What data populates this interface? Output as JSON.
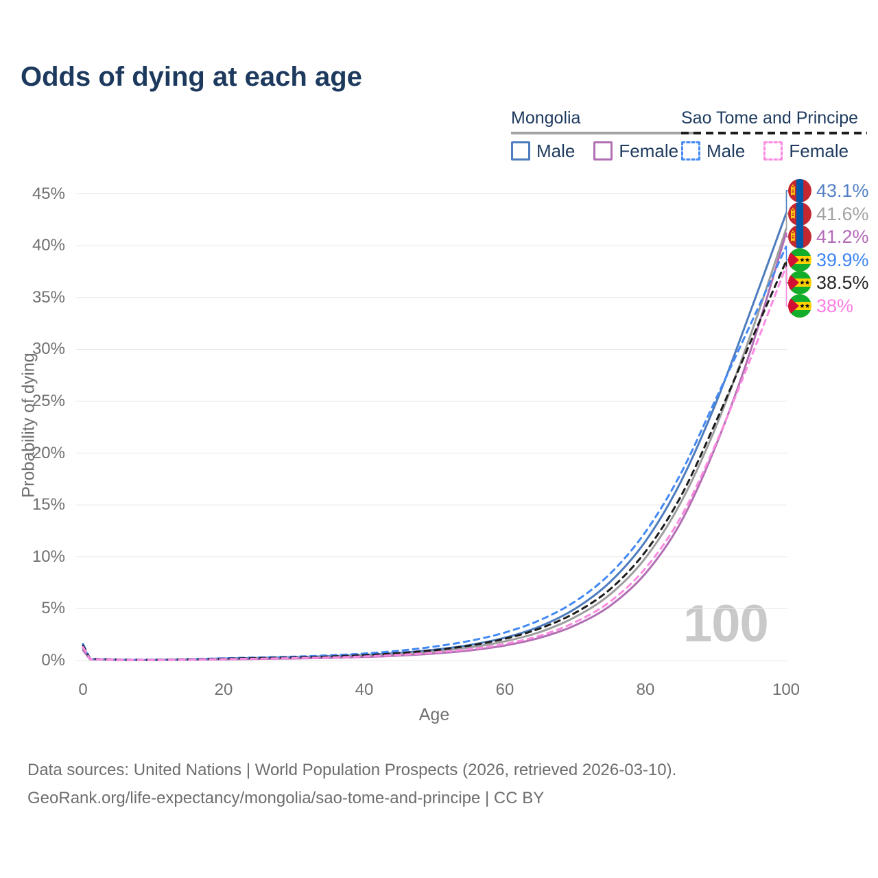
{
  "title": "Odds of dying at each age",
  "watermark": "100",
  "legend": {
    "groups": [
      {
        "name": "Mongolia",
        "line_style": "solid",
        "underline_color": "#a3a3a3",
        "items": [
          {
            "label": "Male",
            "color": "#4d7cbe"
          },
          {
            "label": "Female",
            "color": "#b16fb3"
          }
        ]
      },
      {
        "name": "Sao Tome and Principe",
        "line_style": "dashed",
        "underline_color": "#1c1c1c",
        "items": [
          {
            "label": "Male",
            "color": "#4489f4"
          },
          {
            "label": "Female",
            "color": "#f98ae0"
          }
        ]
      }
    ]
  },
  "axes": {
    "x_label": "Age",
    "y_label": "Probability of dying",
    "x_ticks": {
      "values": [
        0,
        20,
        40,
        60,
        80,
        100
      ],
      "labels": [
        "0",
        "20",
        "40",
        "60",
        "80",
        "100"
      ]
    },
    "y_ticks": {
      "values": [
        0,
        5,
        10,
        15,
        20,
        25,
        30,
        35,
        40,
        45
      ],
      "labels": [
        "0%",
        "5%",
        "10%",
        "15%",
        "20%",
        "25%",
        "30%",
        "35%",
        "40%",
        "45%"
      ]
    }
  },
  "end_labels": [
    {
      "value": "43.1%",
      "color": "#527fc4",
      "flag": "mongolia",
      "series_index": 0
    },
    {
      "value": "41.6%",
      "color": "#a2a2a2",
      "flag": "mongolia",
      "series_index": 1
    },
    {
      "value": "41.2%",
      "color": "#b36ab8",
      "flag": "mongolia",
      "series_index": 2
    },
    {
      "value": "39.9%",
      "color": "#3d85f5",
      "flag": "sao-tome",
      "series_index": 3
    },
    {
      "value": "38.5%",
      "color": "#262626",
      "flag": "sao-tome",
      "series_index": 4
    },
    {
      "value": "38%",
      "color": "#fb7ee5",
      "flag": "sao-tome",
      "series_index": 5
    }
  ],
  "footer": {
    "line1": "Data sources: United Nations | World Population Prospects (2026, retrieved 2026-03-10).",
    "line2": "GeoRank.org/life-expectancy/mongolia/sao-tome-and-principe | CC BY"
  },
  "chart_data": {
    "type": "line",
    "title": "Odds of dying at each age",
    "xlabel": "Age",
    "ylabel": "Probability of dying",
    "xlim": [
      0,
      100
    ],
    "ylim": [
      0,
      47
    ],
    "grid": "horizontal",
    "legend_position": "top-right",
    "ages": [
      0,
      1,
      5,
      10,
      15,
      20,
      25,
      30,
      35,
      40,
      45,
      50,
      55,
      60,
      65,
      70,
      75,
      80,
      85,
      90,
      95,
      100
    ],
    "series": [
      {
        "name": "Mongolia Male",
        "country": "Mongolia",
        "sex": "male",
        "style": "solid",
        "color": "#4d7cbe",
        "end_label": "43.1%",
        "values": [
          1.3,
          0.15,
          0.08,
          0.07,
          0.12,
          0.2,
          0.26,
          0.33,
          0.42,
          0.55,
          0.75,
          1.05,
          1.5,
          2.2,
          3.3,
          5.0,
          7.6,
          11.5,
          17.2,
          24.8,
          33.8,
          43.1
        ]
      },
      {
        "name": "Mongolia Both sexes",
        "country": "Mongolia",
        "sex": "all",
        "style": "solid",
        "color": "#9e9e9e",
        "end_label": "41.6%",
        "values": [
          1.15,
          0.13,
          0.07,
          0.06,
          0.1,
          0.16,
          0.21,
          0.27,
          0.35,
          0.46,
          0.63,
          0.88,
          1.27,
          1.85,
          2.75,
          4.2,
          6.4,
          9.9,
          15.2,
          22.5,
          31.5,
          41.6
        ]
      },
      {
        "name": "Mongolia Female",
        "country": "Mongolia",
        "sex": "female",
        "style": "solid",
        "color": "#b16fb3",
        "end_label": "41.2%",
        "values": [
          1.0,
          0.11,
          0.06,
          0.05,
          0.08,
          0.12,
          0.16,
          0.2,
          0.26,
          0.35,
          0.48,
          0.68,
          0.98,
          1.45,
          2.2,
          3.4,
          5.3,
          8.4,
          13.3,
          20.7,
          30.0,
          41.2
        ]
      },
      {
        "name": "Sao Tome and Principe Male",
        "country": "Sao Tome and Principe",
        "sex": "male",
        "style": "dashed",
        "color": "#4489f4",
        "end_label": "39.9%",
        "values": [
          1.6,
          0.18,
          0.1,
          0.08,
          0.13,
          0.22,
          0.3,
          0.38,
          0.5,
          0.68,
          0.95,
          1.35,
          1.9,
          2.7,
          3.9,
          5.7,
          8.4,
          12.4,
          18.0,
          25.2,
          32.5,
          39.9
        ]
      },
      {
        "name": "Sao Tome and Principe Both sexes",
        "country": "Sao Tome and Principe",
        "sex": "all",
        "style": "dashed",
        "color": "#1c1c1c",
        "end_label": "38.5%",
        "values": [
          1.45,
          0.16,
          0.09,
          0.075,
          0.11,
          0.18,
          0.24,
          0.3,
          0.39,
          0.52,
          0.72,
          1.0,
          1.45,
          2.1,
          3.1,
          4.6,
          6.9,
          10.5,
          15.8,
          23.0,
          30.8,
          38.5
        ]
      },
      {
        "name": "Sao Tome and Principe Female",
        "country": "Sao Tome and Principe",
        "sex": "female",
        "style": "dashed",
        "color": "#f98ae0",
        "end_label": "38%",
        "values": [
          1.3,
          0.14,
          0.08,
          0.065,
          0.09,
          0.14,
          0.18,
          0.23,
          0.3,
          0.4,
          0.55,
          0.78,
          1.1,
          1.6,
          2.4,
          3.7,
          5.7,
          8.9,
          13.8,
          20.9,
          29.2,
          38.0
        ]
      }
    ]
  }
}
